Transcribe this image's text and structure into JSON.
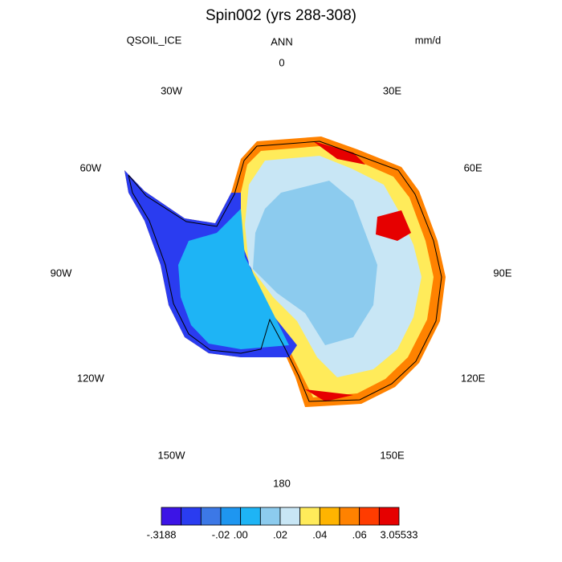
{
  "header": {
    "title": "Spin002 (yrs 288-308)",
    "left": "QSOIL_ICE",
    "center": "ANN",
    "right": "mm/d"
  },
  "longitude_labels": [
    "0",
    "30E",
    "60E",
    "90E",
    "120E",
    "150E",
    "180",
    "150W",
    "120W",
    "90W",
    "60W",
    "30W"
  ],
  "colorbar": {
    "colors": [
      "#3c14e6",
      "#2a3cf0",
      "#3c78e6",
      "#1e96f0",
      "#1eb4f5",
      "#8ccbee",
      "#c8e6f5",
      "#ffeb5a",
      "#ffb400",
      "#ff8200",
      "#ff3c00",
      "#e60000"
    ],
    "boundary_labels": [
      "-.3188",
      null,
      null,
      "-.02",
      ".00",
      null,
      ".02",
      null,
      ".04",
      null,
      ".06",
      null,
      "3.05533"
    ]
  }
}
